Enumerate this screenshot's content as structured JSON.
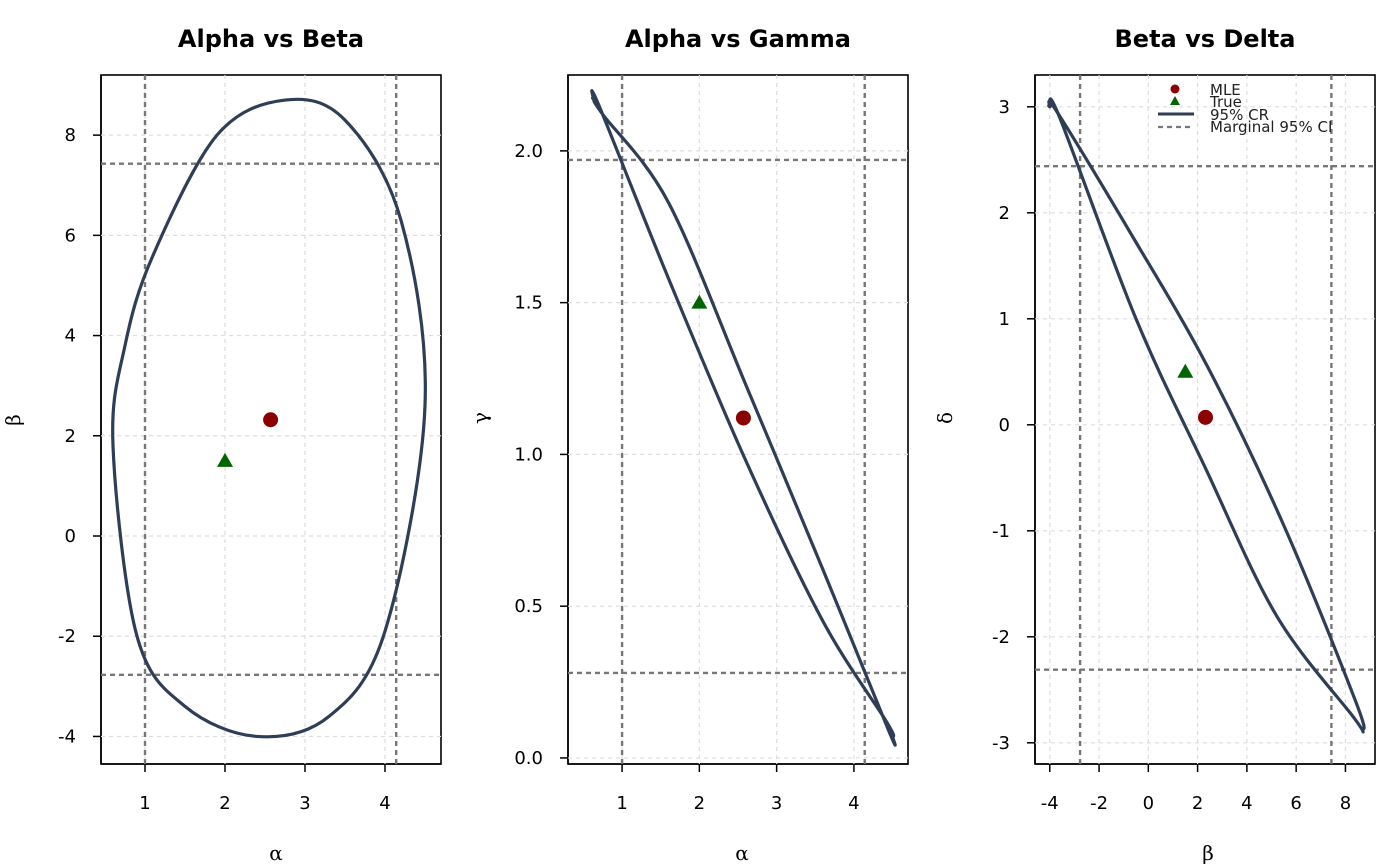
{
  "colors": {
    "mle": "#8b0000",
    "truth": "#006400",
    "region": "#2e3e56",
    "ci": "#777777",
    "grid": "#dddddd"
  },
  "legend": {
    "placement": "top-right",
    "items": [
      {
        "label": "MLE",
        "marker": "circle"
      },
      {
        "label": "True",
        "marker": "triangle"
      },
      {
        "label": "95% CR",
        "marker": "solid-line"
      },
      {
        "label": "Marginal 95% CI",
        "marker": "dashed-line"
      }
    ]
  },
  "chart_data": [
    {
      "type": "scatter",
      "title": "Alpha vs Beta",
      "xlabel": "α",
      "ylabel": "β",
      "xlim": [
        0.45,
        4.7
      ],
      "ylim": [
        -4.55,
        9.2
      ],
      "xticks": [
        1,
        2,
        3,
        4
      ],
      "xtick_labels": [
        "1",
        "2",
        "3",
        "4"
      ],
      "yticks": [
        -4,
        -2,
        0,
        2,
        4,
        6,
        8
      ],
      "ytick_labels": [
        "-4",
        "-2",
        "0",
        "2",
        "4",
        "6",
        "8"
      ],
      "grid": true,
      "mle": [
        2.57,
        2.32
      ],
      "true": [
        2.0,
        1.5
      ],
      "marginal_ci_x": [
        1.0,
        4.14
      ],
      "marginal_ci_y": [
        -2.77,
        7.43
      ],
      "confidence_region": {
        "center": [
          2.57,
          2.32
        ],
        "boundary": [
          [
            0.6,
            1.8
          ],
          [
            0.9,
            -2.0
          ],
          [
            1.5,
            -3.4
          ],
          [
            2.4,
            -4.0
          ],
          [
            3.3,
            -3.6
          ],
          [
            4.0,
            -1.9
          ],
          [
            4.5,
            2.6
          ],
          [
            4.2,
            6.3
          ],
          [
            3.5,
            8.3
          ],
          [
            2.75,
            8.7
          ],
          [
            1.9,
            8.0
          ],
          [
            1.1,
            5.6
          ],
          [
            0.75,
            3.8
          ]
        ]
      }
    },
    {
      "type": "scatter",
      "title": "Alpha vs Gamma",
      "xlabel": "α",
      "ylabel": "γ",
      "xlim": [
        0.3,
        4.7
      ],
      "ylim": [
        -0.02,
        2.25
      ],
      "xticks": [
        1,
        2,
        3,
        4
      ],
      "xtick_labels": [
        "1",
        "2",
        "3",
        "4"
      ],
      "yticks": [
        0.0,
        0.5,
        1.0,
        1.5,
        2.0
      ],
      "ytick_labels": [
        "0.0",
        "0.5",
        "1.0",
        "1.5",
        "2.0"
      ],
      "grid": true,
      "mle": [
        2.57,
        1.12
      ],
      "true": [
        2.0,
        1.5
      ],
      "marginal_ci_x": [
        1.0,
        4.14
      ],
      "marginal_ci_y": [
        0.28,
        1.97
      ],
      "confidence_region": {
        "center": [
          2.57,
          1.12
        ],
        "boundary": [
          [
            0.63,
            2.17
          ],
          [
            0.7,
            2.15
          ],
          [
            1.6,
            1.58
          ],
          [
            2.6,
            0.98
          ],
          [
            3.6,
            0.45
          ],
          [
            4.42,
            0.12
          ],
          [
            4.5,
            0.07
          ],
          [
            4.45,
            0.09
          ],
          [
            3.6,
            0.62
          ],
          [
            2.6,
            1.23
          ],
          [
            1.6,
            1.83
          ],
          [
            0.75,
            2.12
          ],
          [
            0.63,
            2.17
          ]
        ]
      }
    },
    {
      "type": "scatter",
      "title": "Beta vs Delta",
      "xlabel": "β",
      "ylabel": "δ",
      "xlim": [
        -4.6,
        9.2
      ],
      "ylim": [
        -3.2,
        3.3
      ],
      "xticks": [
        -4,
        -2,
        0,
        2,
        4,
        6,
        8
      ],
      "xtick_labels": [
        "-4",
        "-2",
        "0",
        "2",
        "4",
        "6",
        "8"
      ],
      "yticks": [
        -3,
        -2,
        -1,
        0,
        1,
        2,
        3
      ],
      "ytick_labels": [
        "-3",
        "-2",
        "-1",
        "0",
        "1",
        "2",
        "3"
      ],
      "grid": true,
      "mle": [
        2.32,
        0.07
      ],
      "true": [
        1.5,
        0.5
      ],
      "marginal_ci_x": [
        -2.77,
        7.43
      ],
      "marginal_ci_y": [
        -2.31,
        2.44
      ],
      "confidence_region": {
        "center": [
          2.32,
          0.07
        ],
        "boundary": [
          [
            -4.0,
            3.0
          ],
          [
            -3.6,
            2.9
          ],
          [
            -0.5,
            1.0
          ],
          [
            2.3,
            -0.4
          ],
          [
            5.2,
            -1.8
          ],
          [
            8.3,
            -2.75
          ],
          [
            8.7,
            -2.88
          ],
          [
            8.4,
            -2.6
          ],
          [
            5.5,
            -0.95
          ],
          [
            2.4,
            0.55
          ],
          [
            -0.7,
            1.8
          ],
          [
            -3.7,
            2.95
          ],
          [
            -4.0,
            3.0
          ]
        ]
      }
    }
  ]
}
